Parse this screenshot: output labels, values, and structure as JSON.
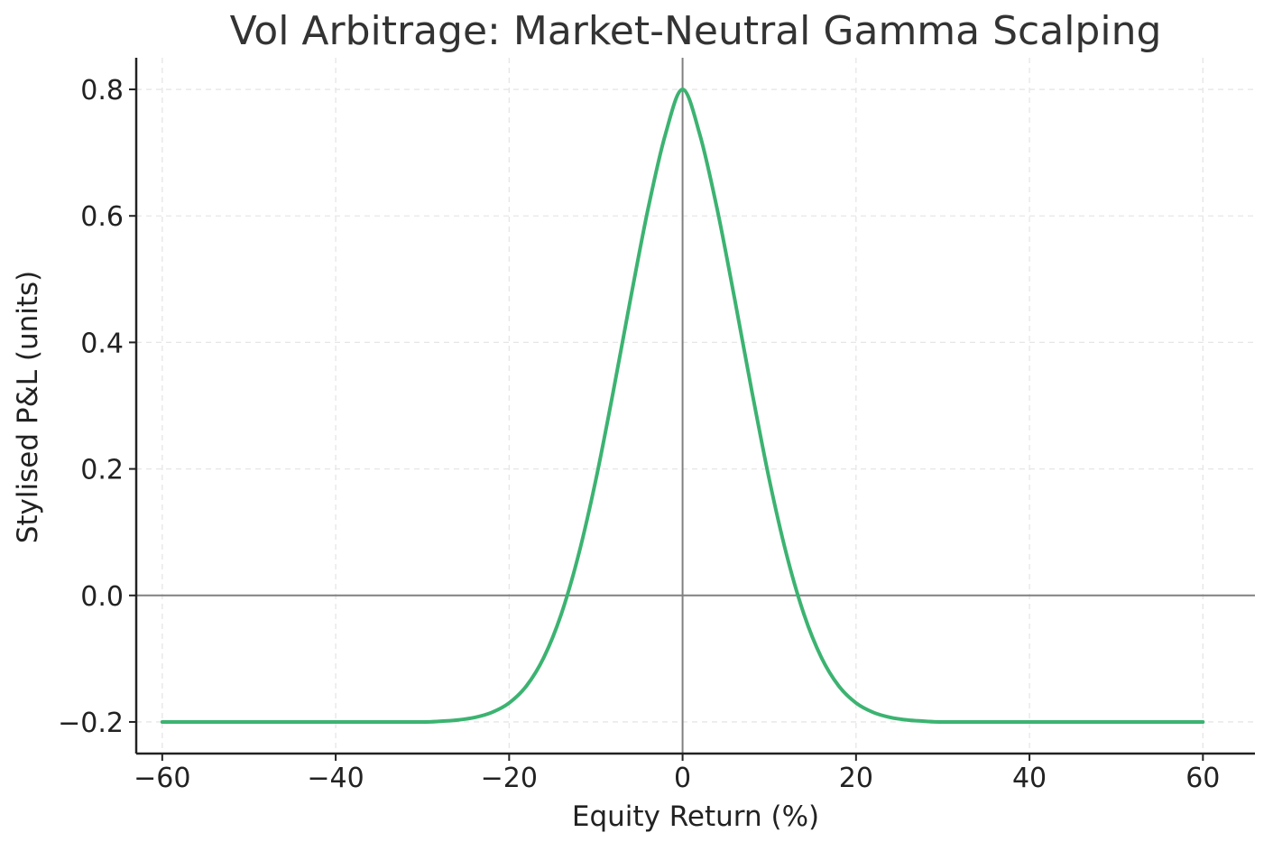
{
  "chart_data": {
    "type": "line",
    "title": "Vol Arbitrage: Market-Neutral Gamma Scalping",
    "xlabel": "Equity Return (%)",
    "ylabel": "Stylised P&L (units)",
    "xlim": [
      -63,
      66
    ],
    "ylim": [
      -0.25,
      0.85
    ],
    "xticks": [
      -60,
      -40,
      -20,
      0,
      20,
      40,
      60
    ],
    "xtick_labels": [
      "−60",
      "−40",
      "−20",
      "0",
      "20",
      "40",
      "60"
    ],
    "yticks": [
      -0.2,
      0.0,
      0.2,
      0.4,
      0.6,
      0.8
    ],
    "ytick_labels": [
      "−0.2",
      "0.0",
      "0.2",
      "0.4",
      "0.6",
      "0.8"
    ],
    "grid": true,
    "reference_lines": {
      "x": 0,
      "y": 0
    },
    "series": [
      {
        "color": "#3cb371",
        "x": [
          -60,
          -50,
          -40,
          -35,
          -30,
          -28,
          -26,
          -24,
          -22,
          -20,
          -18,
          -16,
          -14,
          -12,
          -10,
          -8,
          -6,
          -4,
          -2,
          0,
          2,
          4,
          6,
          8,
          10,
          12,
          14,
          16,
          18,
          20,
          22,
          24,
          26,
          28,
          30,
          35,
          40,
          50,
          60
        ],
        "y": [
          -0.2,
          -0.2,
          -0.2,
          -0.2,
          -0.2,
          -0.199,
          -0.197,
          -0.193,
          -0.185,
          -0.17,
          -0.143,
          -0.098,
          -0.03,
          0.064,
          0.183,
          0.322,
          0.469,
          0.61,
          0.728,
          0.8,
          0.728,
          0.61,
          0.469,
          0.322,
          0.183,
          0.064,
          -0.03,
          -0.098,
          -0.143,
          -0.17,
          -0.185,
          -0.193,
          -0.197,
          -0.199,
          -0.2,
          -0.2,
          -0.2,
          -0.2,
          -0.2
        ]
      }
    ]
  }
}
